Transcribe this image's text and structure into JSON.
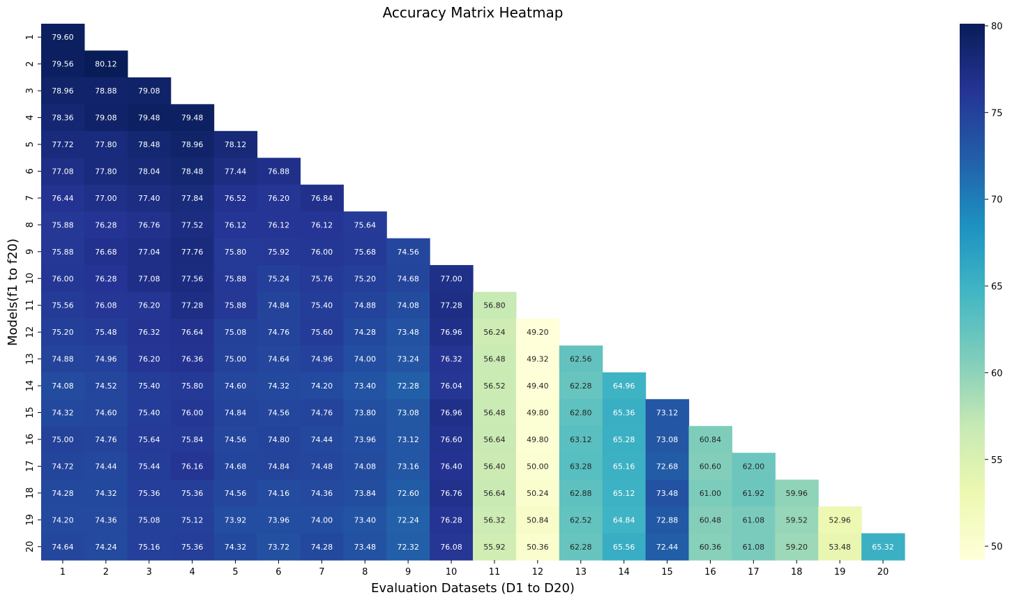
{
  "chart_data": {
    "type": "heatmap",
    "title": "Accuracy Matrix Heatmap",
    "xlabel": "Evaluation Datasets (D1 to D20)",
    "ylabel": "Models(f1 to f20)",
    "x_ticks": [
      "1",
      "2",
      "3",
      "4",
      "5",
      "6",
      "7",
      "8",
      "9",
      "10",
      "11",
      "12",
      "13",
      "14",
      "15",
      "16",
      "17",
      "18",
      "19",
      "20"
    ],
    "y_ticks": [
      "1",
      "2",
      "3",
      "4",
      "5",
      "6",
      "7",
      "8",
      "9",
      "10",
      "11",
      "12",
      "13",
      "14",
      "15",
      "16",
      "17",
      "18",
      "19",
      "20"
    ],
    "colormap": "YlGnBu",
    "value_range": [
      49.2,
      80.12
    ],
    "colorbar_ticks": [
      "50",
      "55",
      "60",
      "65",
      "70",
      "75",
      "80"
    ],
    "rows": [
      [
        "79.60"
      ],
      [
        "79.56",
        "80.12"
      ],
      [
        "78.96",
        "78.88",
        "79.08"
      ],
      [
        "78.36",
        "79.08",
        "79.48",
        "79.48"
      ],
      [
        "77.72",
        "77.80",
        "78.48",
        "78.96",
        "78.12"
      ],
      [
        "77.08",
        "77.80",
        "78.04",
        "78.48",
        "77.44",
        "76.88"
      ],
      [
        "76.44",
        "77.00",
        "77.40",
        "77.84",
        "76.52",
        "76.20",
        "76.84"
      ],
      [
        "75.88",
        "76.28",
        "76.76",
        "77.52",
        "76.12",
        "76.12",
        "76.12",
        "75.64"
      ],
      [
        "75.88",
        "76.68",
        "77.04",
        "77.76",
        "75.80",
        "75.92",
        "76.00",
        "75.68",
        "74.56"
      ],
      [
        "76.00",
        "76.28",
        "77.08",
        "77.56",
        "75.88",
        "75.24",
        "75.76",
        "75.20",
        "74.68",
        "77.00"
      ],
      [
        "75.56",
        "76.08",
        "76.20",
        "77.28",
        "75.88",
        "74.84",
        "75.40",
        "74.88",
        "74.08",
        "77.28",
        "56.80"
      ],
      [
        "75.20",
        "75.48",
        "76.32",
        "76.64",
        "75.08",
        "74.76",
        "75.60",
        "74.28",
        "73.48",
        "76.96",
        "56.24",
        "49.20"
      ],
      [
        "74.88",
        "74.96",
        "76.20",
        "76.36",
        "75.00",
        "74.64",
        "74.96",
        "74.00",
        "73.24",
        "76.32",
        "56.48",
        "49.32",
        "62.56"
      ],
      [
        "74.08",
        "74.52",
        "75.40",
        "75.80",
        "74.60",
        "74.32",
        "74.20",
        "73.40",
        "72.28",
        "76.04",
        "56.52",
        "49.40",
        "62.28",
        "64.96"
      ],
      [
        "74.32",
        "74.60",
        "75.40",
        "76.00",
        "74.84",
        "74.56",
        "74.76",
        "73.80",
        "73.08",
        "76.96",
        "56.48",
        "49.80",
        "62.80",
        "65.36",
        "73.12"
      ],
      [
        "75.00",
        "74.76",
        "75.64",
        "75.84",
        "74.56",
        "74.80",
        "74.44",
        "73.96",
        "73.12",
        "76.60",
        "56.64",
        "49.80",
        "63.12",
        "65.28",
        "73.08",
        "60.84"
      ],
      [
        "74.72",
        "74.44",
        "75.44",
        "76.16",
        "74.68",
        "74.84",
        "74.48",
        "74.08",
        "73.16",
        "76.40",
        "56.40",
        "50.00",
        "63.28",
        "65.16",
        "72.68",
        "60.60",
        "62.00"
      ],
      [
        "74.28",
        "74.32",
        "75.36",
        "75.36",
        "74.56",
        "74.16",
        "74.36",
        "73.84",
        "72.60",
        "76.76",
        "56.64",
        "50.24",
        "62.88",
        "65.12",
        "73.48",
        "61.00",
        "61.92",
        "59.96"
      ],
      [
        "74.20",
        "74.36",
        "75.08",
        "75.12",
        "73.92",
        "73.96",
        "74.00",
        "73.40",
        "72.24",
        "76.28",
        "56.32",
        "50.84",
        "62.52",
        "64.84",
        "72.88",
        "60.48",
        "61.08",
        "59.52",
        "52.96"
      ],
      [
        "74.64",
        "74.24",
        "75.16",
        "75.36",
        "74.32",
        "73.72",
        "74.28",
        "73.48",
        "72.32",
        "76.08",
        "55.92",
        "50.36",
        "62.28",
        "65.56",
        "72.44",
        "60.36",
        "61.08",
        "59.20",
        "53.48",
        "65.32"
      ]
    ]
  }
}
